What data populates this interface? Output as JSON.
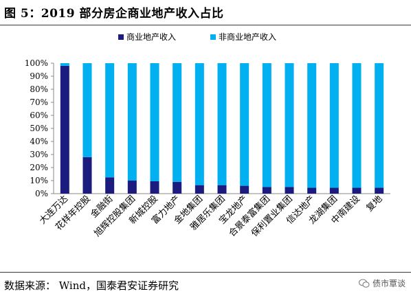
{
  "figure": {
    "title": "图 5：2019 部分房企商业地产收入占比"
  },
  "chart_data": {
    "type": "bar",
    "stacked": true,
    "categories": [
      "大连万达",
      "花样年控股",
      "金融街",
      "旭辉控股集团",
      "新城控股",
      "富力地产",
      "金地集团",
      "雅居乐集团",
      "宝龙地产",
      "合景泰富集团",
      "保利置业集团",
      "信达地产",
      "龙湖集团",
      "中南建设",
      "复地"
    ],
    "series": [
      {
        "name": "商业地产收入",
        "color": "#1c1c7e",
        "values": [
          98,
          28,
          12.5,
          10,
          9.5,
          9,
          6.5,
          6.5,
          6,
          5,
          5,
          4.5,
          4.5,
          4.5,
          4.5
        ]
      },
      {
        "name": "非商业地产收入",
        "color": "#00b0f0",
        "values": [
          2,
          72,
          87.5,
          90,
          90.5,
          91,
          93.5,
          93.5,
          94,
          95,
          95,
          95.5,
          95.5,
          95.5,
          95.5
        ]
      }
    ],
    "ylim": [
      0,
      100
    ],
    "yticks": [
      "0%",
      "10%",
      "20%",
      "30%",
      "40%",
      "50%",
      "60%",
      "70%",
      "80%",
      "90%",
      "100%"
    ],
    "legend_position": "top-center",
    "grid": false
  },
  "footer": {
    "source": "数据来源：  Wind，国泰君安证券研究"
  },
  "watermark": {
    "icon": "wechat-icon",
    "text": "债市覃谈"
  }
}
